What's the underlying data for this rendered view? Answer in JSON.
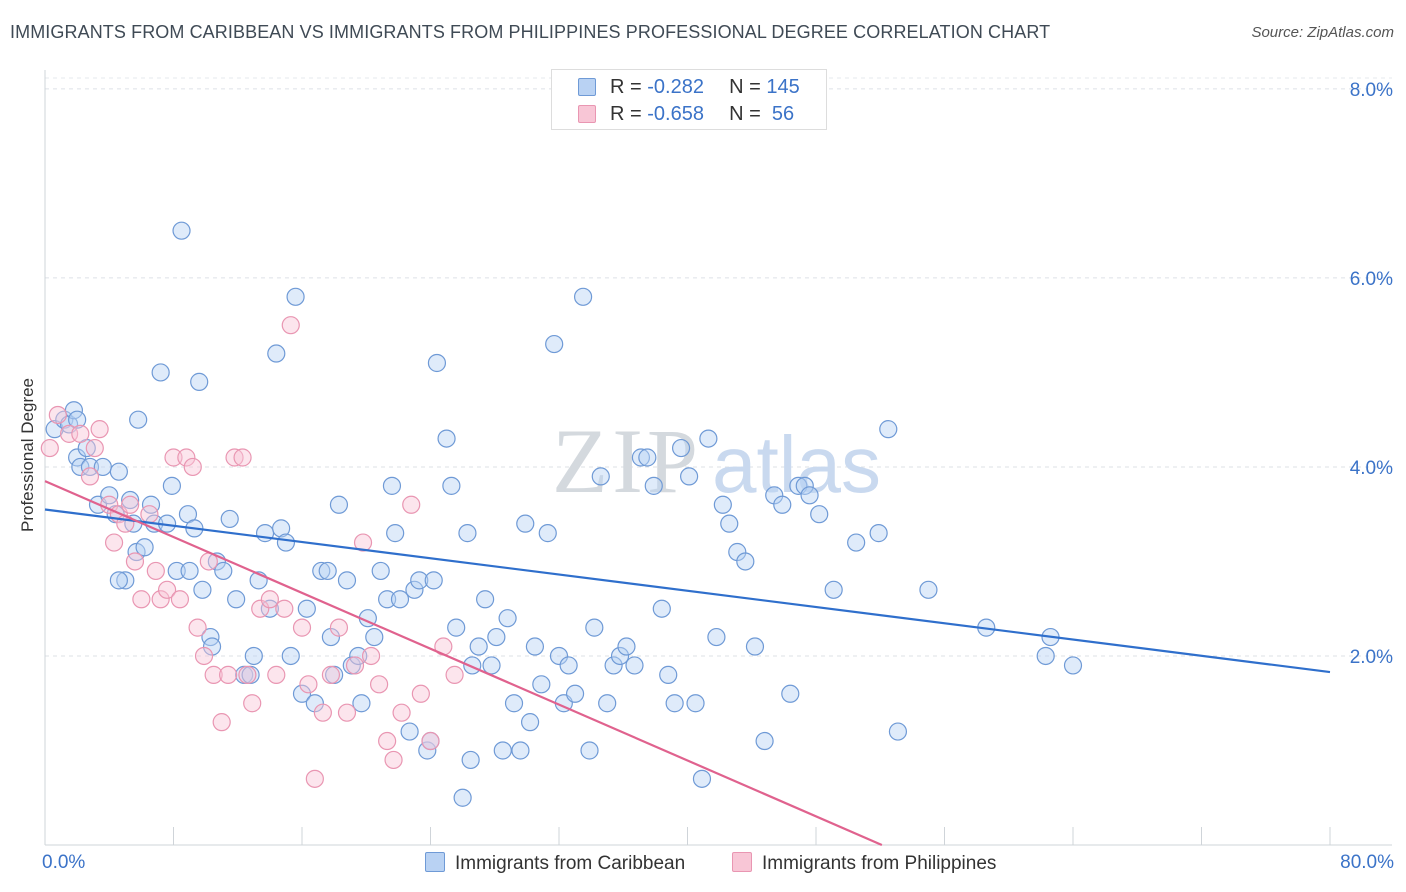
{
  "title": "IMMIGRANTS FROM CARIBBEAN VS IMMIGRANTS FROM PHILIPPINES PROFESSIONAL DEGREE CORRELATION CHART",
  "source": "Source: ZipAtlas.com",
  "watermark": {
    "zip": "ZIP",
    "atlas": "atlas"
  },
  "legend": {
    "rows": [
      {
        "r_label": "R =",
        "r_value": "-0.282",
        "n_label": "N =",
        "n_value": "145"
      },
      {
        "r_label": "R =",
        "r_value": "-0.658",
        "n_label": "N =",
        "n_value": " 56"
      }
    ]
  },
  "chart_data": {
    "type": "scatter",
    "ylabel": "Professional Degree",
    "x_tick_labels": [
      "0.0%",
      "80.0%"
    ],
    "y_tick_labels": [
      "2.0%",
      "4.0%",
      "6.0%",
      "8.0%"
    ],
    "y_ticks": [
      2,
      4,
      6,
      8
    ],
    "xlim": [
      0,
      80
    ],
    "ylim": [
      0,
      8.2
    ],
    "colors": {
      "caribbean_fill": "#b9d2f3",
      "caribbean_stroke": "#6f9ad6",
      "caribbean_line": "#2f6fcc",
      "philippines_fill": "#f8c6d6",
      "philippines_stroke": "#e996b2",
      "philippines_line": "#e0628e",
      "tick_label": "#3b73c8"
    },
    "series": [
      {
        "name": "Immigrants from Caribbean",
        "trend": {
          "x0": 0,
          "y0": 3.55,
          "x1": 80,
          "y1": 1.83
        },
        "points": [
          [
            0.6,
            4.4
          ],
          [
            1.2,
            4.5
          ],
          [
            1.5,
            4.45
          ],
          [
            1.8,
            4.6
          ],
          [
            2.0,
            4.1
          ],
          [
            2.2,
            4.0
          ],
          [
            2.6,
            4.2
          ],
          [
            2.8,
            4.0
          ],
          [
            3.3,
            3.6
          ],
          [
            3.6,
            4.0
          ],
          [
            4.0,
            3.7
          ],
          [
            4.4,
            3.5
          ],
          [
            4.6,
            3.95
          ],
          [
            5.0,
            2.8
          ],
          [
            5.3,
            3.65
          ],
          [
            5.5,
            3.4
          ],
          [
            5.7,
            3.1
          ],
          [
            5.8,
            4.5
          ],
          [
            6.2,
            3.15
          ],
          [
            6.6,
            3.6
          ],
          [
            6.8,
            3.4
          ],
          [
            7.2,
            5.0
          ],
          [
            7.6,
            3.4
          ],
          [
            7.9,
            3.8
          ],
          [
            8.2,
            2.9
          ],
          [
            8.5,
            6.5
          ],
          [
            8.9,
            3.5
          ],
          [
            9.0,
            2.9
          ],
          [
            9.3,
            3.35
          ],
          [
            9.6,
            4.9
          ],
          [
            9.8,
            2.7
          ],
          [
            10.3,
            2.2
          ],
          [
            10.4,
            2.1
          ],
          [
            10.7,
            3.0
          ],
          [
            11.1,
            2.9
          ],
          [
            11.5,
            3.45
          ],
          [
            11.9,
            2.6
          ],
          [
            12.4,
            1.8
          ],
          [
            12.8,
            1.8
          ],
          [
            13.0,
            2.0
          ],
          [
            13.3,
            2.8
          ],
          [
            13.7,
            3.3
          ],
          [
            14.0,
            2.5
          ],
          [
            14.4,
            5.2
          ],
          [
            14.7,
            3.35
          ],
          [
            15.0,
            3.2
          ],
          [
            15.3,
            2.0
          ],
          [
            15.6,
            5.8
          ],
          [
            16.0,
            1.6
          ],
          [
            16.3,
            2.5
          ],
          [
            16.8,
            1.5
          ],
          [
            17.2,
            2.9
          ],
          [
            17.6,
            2.9
          ],
          [
            17.8,
            2.2
          ],
          [
            18.0,
            1.8
          ],
          [
            18.3,
            3.6
          ],
          [
            18.8,
            2.8
          ],
          [
            19.1,
            1.9
          ],
          [
            19.5,
            2.0
          ],
          [
            19.7,
            1.5
          ],
          [
            20.1,
            2.4
          ],
          [
            20.5,
            2.2
          ],
          [
            20.9,
            2.9
          ],
          [
            21.3,
            2.6
          ],
          [
            21.6,
            3.8
          ],
          [
            21.8,
            3.3
          ],
          [
            22.1,
            2.6
          ],
          [
            22.7,
            1.2
          ],
          [
            23.0,
            2.7
          ],
          [
            23.3,
            2.8
          ],
          [
            23.8,
            1.0
          ],
          [
            24.2,
            2.8
          ],
          [
            24.4,
            5.1
          ],
          [
            25.0,
            4.3
          ],
          [
            25.3,
            3.8
          ],
          [
            25.6,
            2.3
          ],
          [
            26.0,
            0.5
          ],
          [
            26.3,
            3.3
          ],
          [
            26.6,
            1.9
          ],
          [
            27.0,
            2.1
          ],
          [
            27.4,
            2.6
          ],
          [
            27.8,
            1.9
          ],
          [
            28.1,
            2.2
          ],
          [
            28.5,
            1.0
          ],
          [
            28.8,
            2.4
          ],
          [
            29.2,
            1.5
          ],
          [
            29.6,
            1.0
          ],
          [
            29.9,
            3.4
          ],
          [
            30.2,
            1.3
          ],
          [
            30.5,
            2.1
          ],
          [
            30.9,
            1.7
          ],
          [
            31.3,
            3.3
          ],
          [
            31.7,
            5.3
          ],
          [
            32.0,
            2.0
          ],
          [
            32.3,
            1.5
          ],
          [
            32.6,
            1.9
          ],
          [
            33.0,
            1.6
          ],
          [
            33.5,
            5.8
          ],
          [
            33.9,
            1.0
          ],
          [
            34.2,
            2.3
          ],
          [
            34.6,
            3.9
          ],
          [
            35.0,
            1.5
          ],
          [
            35.4,
            1.9
          ],
          [
            35.8,
            2.0
          ],
          [
            36.2,
            2.1
          ],
          [
            36.7,
            1.9
          ],
          [
            37.1,
            4.1
          ],
          [
            37.5,
            4.1
          ],
          [
            37.9,
            3.8
          ],
          [
            38.4,
            2.5
          ],
          [
            38.8,
            1.8
          ],
          [
            39.2,
            1.5
          ],
          [
            39.6,
            4.2
          ],
          [
            40.1,
            3.9
          ],
          [
            40.5,
            1.5
          ],
          [
            40.9,
            0.7
          ],
          [
            41.3,
            4.3
          ],
          [
            41.8,
            2.2
          ],
          [
            42.2,
            3.6
          ],
          [
            42.6,
            3.4
          ],
          [
            43.1,
            3.1
          ],
          [
            43.6,
            3.0
          ],
          [
            44.2,
            2.1
          ],
          [
            44.8,
            1.1
          ],
          [
            45.4,
            3.7
          ],
          [
            45.9,
            3.6
          ],
          [
            46.4,
            1.6
          ],
          [
            46.9,
            3.8
          ],
          [
            47.3,
            3.8
          ],
          [
            47.6,
            3.7
          ],
          [
            48.2,
            3.5
          ],
          [
            49.1,
            2.7
          ],
          [
            50.5,
            3.2
          ],
          [
            51.9,
            3.3
          ],
          [
            52.5,
            4.4
          ],
          [
            53.1,
            1.2
          ],
          [
            55.0,
            2.7
          ],
          [
            58.6,
            2.3
          ],
          [
            62.3,
            2.0
          ],
          [
            62.6,
            2.2
          ],
          [
            64.0,
            1.9
          ],
          [
            2.0,
            4.5
          ],
          [
            4.6,
            2.8
          ],
          [
            24.0,
            1.1
          ],
          [
            26.5,
            0.9
          ]
        ]
      },
      {
        "name": "Immigrants from Philippines",
        "trend": {
          "x0": 0,
          "y0": 3.85,
          "x1": 52.1,
          "y1": 0
        },
        "points": [
          [
            0.3,
            4.2
          ],
          [
            0.8,
            4.55
          ],
          [
            1.5,
            4.35
          ],
          [
            2.2,
            4.35
          ],
          [
            2.8,
            3.9
          ],
          [
            3.1,
            4.2
          ],
          [
            3.4,
            4.4
          ],
          [
            4.0,
            3.6
          ],
          [
            4.3,
            3.2
          ],
          [
            4.6,
            3.5
          ],
          [
            5.0,
            3.4
          ],
          [
            5.3,
            3.6
          ],
          [
            5.6,
            3.0
          ],
          [
            6.0,
            2.6
          ],
          [
            6.5,
            3.5
          ],
          [
            6.9,
            2.9
          ],
          [
            7.2,
            2.6
          ],
          [
            7.6,
            2.7
          ],
          [
            8.0,
            4.1
          ],
          [
            8.4,
            2.6
          ],
          [
            8.8,
            4.1
          ],
          [
            9.2,
            4.0
          ],
          [
            9.5,
            2.3
          ],
          [
            9.9,
            2.0
          ],
          [
            10.2,
            3.0
          ],
          [
            10.5,
            1.8
          ],
          [
            11.0,
            1.3
          ],
          [
            11.4,
            1.8
          ],
          [
            11.8,
            4.1
          ],
          [
            12.3,
            4.1
          ],
          [
            12.6,
            1.8
          ],
          [
            12.9,
            1.5
          ],
          [
            13.4,
            2.5
          ],
          [
            14.0,
            2.6
          ],
          [
            14.4,
            1.8
          ],
          [
            14.9,
            2.5
          ],
          [
            15.3,
            5.5
          ],
          [
            16.0,
            2.3
          ],
          [
            16.4,
            1.7
          ],
          [
            16.8,
            0.7
          ],
          [
            17.3,
            1.4
          ],
          [
            17.8,
            1.8
          ],
          [
            18.3,
            2.3
          ],
          [
            18.8,
            1.4
          ],
          [
            19.3,
            1.9
          ],
          [
            19.8,
            3.2
          ],
          [
            20.3,
            2.0
          ],
          [
            20.8,
            1.7
          ],
          [
            21.3,
            1.1
          ],
          [
            21.7,
            0.9
          ],
          [
            22.2,
            1.4
          ],
          [
            22.8,
            3.6
          ],
          [
            23.4,
            1.6
          ],
          [
            24.0,
            1.1
          ],
          [
            24.8,
            2.1
          ],
          [
            25.5,
            1.8
          ]
        ]
      }
    ]
  },
  "bottom_legend": [
    "Immigrants from Caribbean",
    "Immigrants from Philippines"
  ]
}
